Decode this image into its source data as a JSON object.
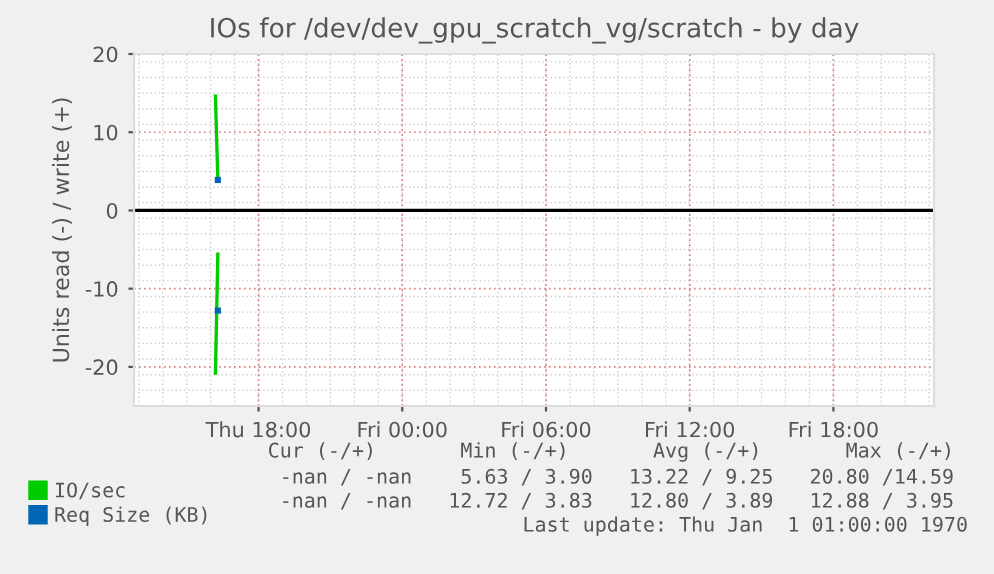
{
  "chart_data": {
    "type": "line",
    "title": "IOs for /dev/dev_gpu_scratch_vg/scratch - by day",
    "ylabel": "Units read (-) / write (+)",
    "series": [
      {
        "name": "IO/sec",
        "color": "#00cc00",
        "x": [
          "1970-01-01T16:12",
          "1970-01-01T16:18"
        ],
        "values": [
          14.6,
          3.9
        ]
      },
      {
        "color": "#00cc00",
        "x": [
          "1970-01-01T16:12",
          "1970-01-01T16:18"
        ],
        "values": [
          -20.8,
          -5.6
        ]
      },
      {
        "name": "Req Size (KB)",
        "type": "scatter",
        "marker": "square",
        "color": "#0066b3",
        "x": [
          "1970-01-01T16:18"
        ],
        "values": [
          3.9
        ]
      },
      {
        "type": "scatter",
        "marker": "square",
        "color": "#0066b3",
        "x": [
          "1970-01-01T16:18"
        ],
        "values": [
          -12.8
        ]
      }
    ],
    "xlim": [
      "1970-01-01T12:48",
      "1970-01-02T22:12"
    ],
    "xticks": [
      {
        "value": "1970-01-01T18:00",
        "label": "Thu 18:00"
      },
      {
        "value": "1970-01-02T00:00",
        "label": "Fri 00:00"
      },
      {
        "value": "1970-01-02T06:00",
        "label": "Fri 06:00"
      },
      {
        "value": "1970-01-02T12:00",
        "label": "Fri 12:00"
      },
      {
        "value": "1970-01-02T18:00",
        "label": "Fri 18:00"
      }
    ],
    "ylim": [
      -25,
      20
    ],
    "yticks": [
      -20,
      -10,
      0,
      10,
      20
    ],
    "ref_lines": [
      {
        "axis": "y",
        "value": 0,
        "color": "#000000"
      }
    ],
    "grid": true,
    "legend": "bottom",
    "annotations": [
      "Cur (-/+)       Min (-/+)       Avg (-/+)       Max (-/+)",
      "-nan / -nan    5.63 / 3.90   13.22 / 9.25   20.80 /14.59",
      "-nan / -nan   12.72 / 3.83   12.80 / 3.89   12.88 / 3.95",
      "Last update: Thu Jan  1 01:00:00 1970"
    ]
  }
}
